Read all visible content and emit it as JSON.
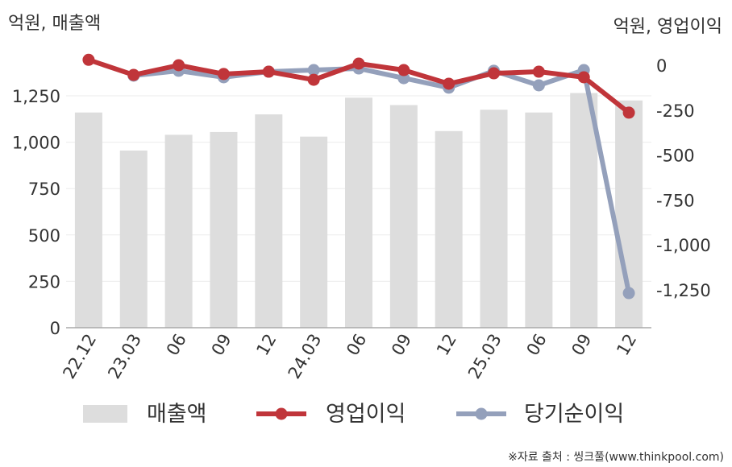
{
  "chart_data": {
    "type": "bar+line",
    "left_unit": "억원, 매출액",
    "right_unit": "억원, 영업이익",
    "categories": [
      "22.12",
      "23.03",
      "06",
      "09",
      "12",
      "24.03",
      "06",
      "09",
      "12",
      "25.03",
      "06",
      "09",
      "12"
    ],
    "left_axis": {
      "range": [
        0,
        1450
      ],
      "ticks": [
        "0",
        "250",
        "500",
        "750",
        "1,000",
        "1,250"
      ],
      "tick_values": [
        0,
        250,
        500,
        750,
        1000,
        1250
      ]
    },
    "right_axis": {
      "range": [
        -1450,
        50
      ],
      "ticks": [
        "0",
        "-250",
        "-500",
        "-750",
        "-1,000",
        "-1,250"
      ],
      "tick_values": [
        0,
        -250,
        -500,
        -750,
        -1000,
        -1250
      ]
    },
    "grid": true,
    "legend_position": "bottom",
    "series": [
      {
        "name": "매출액",
        "type": "bar",
        "axis": "left",
        "color": "#dddddd",
        "values": [
          1160,
          955,
          1040,
          1055,
          1150,
          1030,
          1240,
          1200,
          1060,
          1175,
          1160,
          1265,
          1225
        ]
      },
      {
        "name": "영업이익",
        "type": "line",
        "axis": "right",
        "color": "#c0353a",
        "values": [
          30,
          -54,
          0,
          -49,
          -36,
          -81,
          9,
          -27,
          -103,
          -45,
          -36,
          -67,
          -264
        ]
      },
      {
        "name": "당기순이익",
        "type": "line",
        "axis": "right",
        "color": "#94a0bb",
        "values": [
          null,
          -58,
          -31,
          -67,
          -36,
          -27,
          -18,
          -72,
          -125,
          -31,
          -112,
          -27,
          -1268
        ]
      }
    ]
  },
  "source": "※자료 출처 : 씽크풀(www.thinkpool.com)"
}
